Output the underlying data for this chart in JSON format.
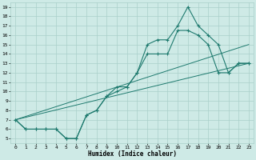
{
  "xlabel": "Humidex (Indice chaleur)",
  "x_ticks": [
    0,
    1,
    2,
    3,
    4,
    5,
    6,
    7,
    8,
    9,
    10,
    11,
    12,
    13,
    14,
    15,
    16,
    17,
    18,
    19,
    20,
    21,
    22,
    23
  ],
  "y_ticks": [
    5,
    6,
    7,
    8,
    9,
    10,
    11,
    12,
    13,
    14,
    15,
    16,
    17,
    18,
    19
  ],
  "xlim": [
    -0.5,
    23.5
  ],
  "ylim": [
    4.5,
    19.5
  ],
  "background_color": "#ceeae6",
  "grid_color": "#aacfca",
  "line_color": "#1e7a6e",
  "line1_y": [
    7,
    6,
    6,
    6,
    6,
    5,
    5,
    7.5,
    8,
    9.5,
    10.5,
    10.5,
    12,
    15,
    15.5,
    15.5,
    17,
    19,
    17,
    16,
    15,
    12,
    13,
    13
  ],
  "line2_y": [
    7,
    6,
    6,
    6,
    6,
    5,
    5,
    7.5,
    8,
    9.5,
    10,
    10.5,
    12,
    14,
    14,
    14,
    16.5,
    16.5,
    16,
    15,
    12,
    12,
    13,
    13
  ],
  "reg1_start": 7,
  "reg1_end": 15,
  "reg2_start": 7,
  "reg2_end": 13
}
